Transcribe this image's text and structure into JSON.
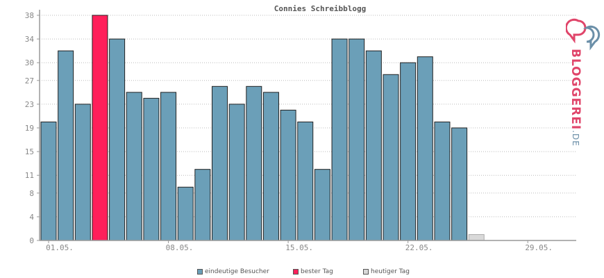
{
  "chart_data": {
    "type": "bar",
    "title": "Connies Schreibblogg",
    "y_ticks": [
      0,
      4,
      8,
      11,
      15,
      19,
      23,
      27,
      30,
      34,
      38
    ],
    "ylim": [
      0,
      38
    ],
    "x_tick_labels": [
      "01.05.",
      "08.05.",
      "15.05.",
      "22.05.",
      "29.05."
    ],
    "categories": [
      "01.05.",
      "02.05.",
      "03.05.",
      "04.05.",
      "05.05.",
      "06.05.",
      "07.05.",
      "08.05.",
      "09.05.",
      "10.05.",
      "11.05.",
      "12.05.",
      "13.05.",
      "14.05.",
      "15.05.",
      "16.05.",
      "17.05.",
      "18.05.",
      "19.05.",
      "20.05.",
      "21.05.",
      "22.05.",
      "23.05.",
      "24.05.",
      "25.05.",
      "26.05.",
      "27.05.",
      "28.05.",
      "29.05.",
      "30.05.",
      "31.05."
    ],
    "values": [
      20,
      32,
      23,
      38,
      34,
      25,
      24,
      25,
      9,
      12,
      26,
      23,
      26,
      25,
      22,
      20,
      12,
      34,
      34,
      32,
      28,
      30,
      31,
      20,
      19,
      1,
      0,
      0,
      0,
      0,
      0
    ],
    "best_day_index": 3,
    "today_index": 25,
    "grid": true,
    "colors": {
      "bar": "#6b9fb8",
      "best": "#ff1f5a",
      "today": "#d9d9d9",
      "edge": "#222222",
      "grid": "#bbbbbb"
    },
    "legend": [
      {
        "label": "eindeutige Besucher",
        "color": "#6b9fb8"
      },
      {
        "label": "bester Tag",
        "color": "#ff1f5a"
      },
      {
        "label": "heutiger Tag",
        "color": "#d9d9d9"
      }
    ]
  },
  "logo": {
    "text_main": "BLOGGEREI",
    "text_suffix": ".DE"
  }
}
